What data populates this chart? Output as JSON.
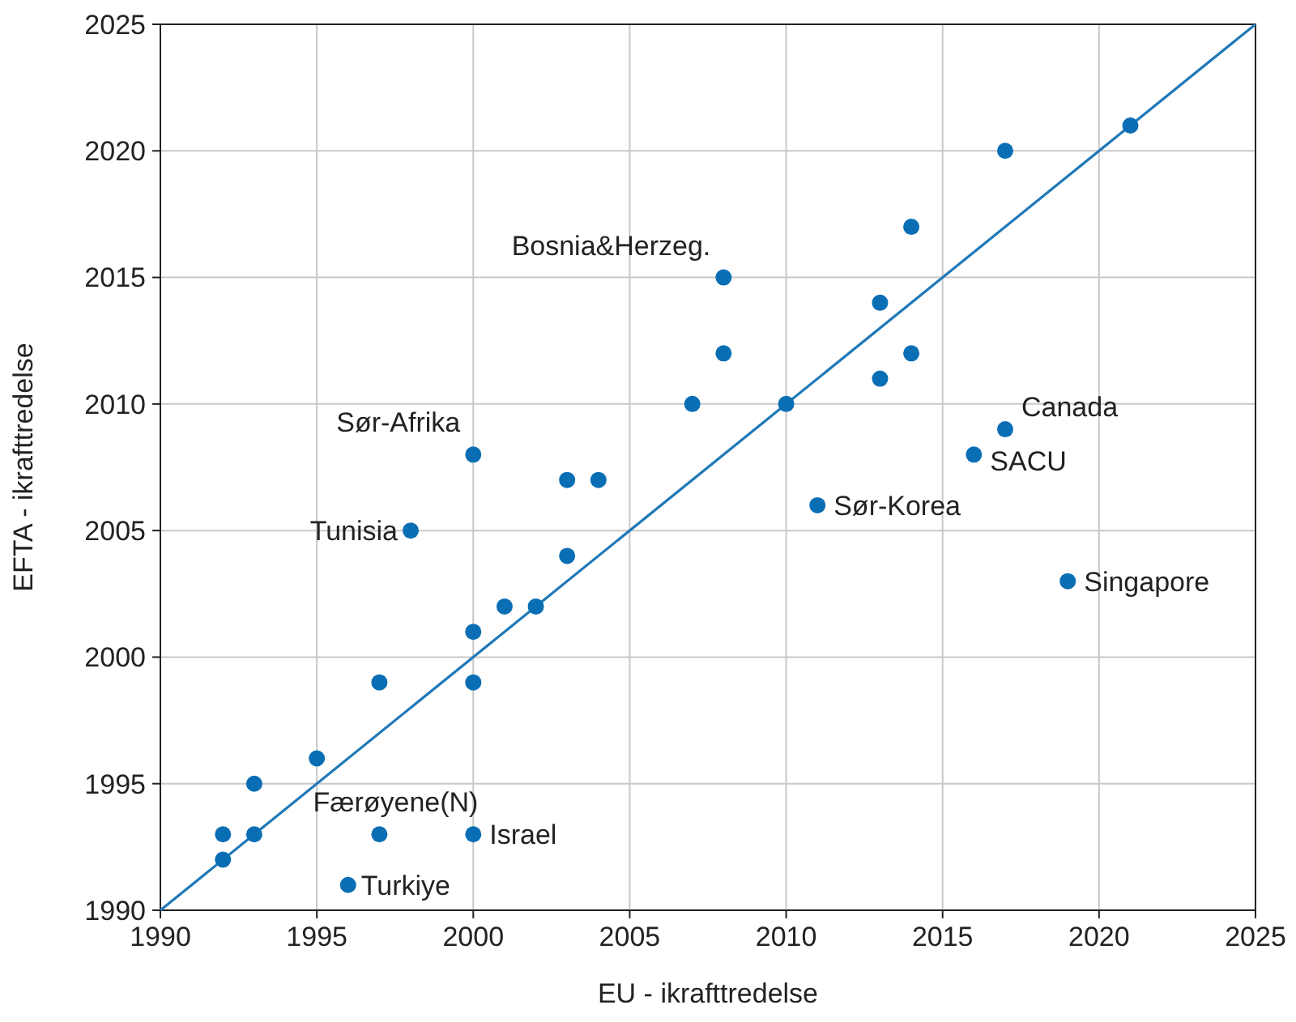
{
  "chart_data": {
    "type": "scatter",
    "xlabel": "EU - ikrafttredelse",
    "ylabel": "EFTA - ikrafttredelse",
    "xlim": [
      1990,
      2025
    ],
    "ylim": [
      1990,
      2025
    ],
    "xticks": [
      1990,
      1995,
      2000,
      2005,
      2010,
      2015,
      2020,
      2025
    ],
    "yticks": [
      1990,
      1995,
      2000,
      2005,
      2010,
      2015,
      2020,
      2025
    ],
    "grid": true,
    "series": [
      {
        "marker": "circle",
        "color": "#0a6eb4",
        "x": [
          1992,
          1992,
          1993,
          1993,
          1995,
          1997,
          1997,
          1996,
          2000,
          2000,
          2000,
          2001,
          2002,
          2003,
          2003,
          2004,
          2000,
          1998,
          2007,
          2008,
          2008,
          2010,
          2011,
          2013,
          2013,
          2014,
          2014,
          2016,
          2017,
          2017,
          2019,
          2021
        ],
        "values": [
          1992,
          1993,
          1993,
          1995,
          1996,
          1999,
          1993,
          1991,
          1993,
          1999,
          2001,
          2002,
          2002,
          2004,
          2007,
          2007,
          2008,
          2005,
          2010,
          2012,
          2015,
          2010,
          2006,
          2014,
          2011,
          2017,
          2012,
          2008,
          2009,
          2020,
          2003,
          2021
        ]
      },
      {
        "type": "line",
        "marker": "none",
        "color": "#1f78b8",
        "x": [
          1990,
          2025
        ],
        "values": [
          1990,
          2025
        ]
      }
    ],
    "annotations": [
      {
        "text": "Bosnia&Herzeg.",
        "x": 2008,
        "y": 2015
      },
      {
        "text": "Sør-Afrika",
        "x": 2000,
        "y": 2008
      },
      {
        "text": "Tunisia",
        "x": 1998,
        "y": 2005
      },
      {
        "text": "Canada",
        "x": 2017,
        "y": 2009
      },
      {
        "text": "SACU",
        "x": 2016,
        "y": 2008
      },
      {
        "text": "Sør-Korea",
        "x": 2011,
        "y": 2006
      },
      {
        "text": "Singapore",
        "x": 2019,
        "y": 2003
      },
      {
        "text": "Færøyene(N)",
        "x": 1997,
        "y": 1993
      },
      {
        "text": "Israel",
        "x": 2000,
        "y": 1993
      },
      {
        "text": "Turkiye",
        "x": 1996,
        "y": 1991
      }
    ]
  }
}
